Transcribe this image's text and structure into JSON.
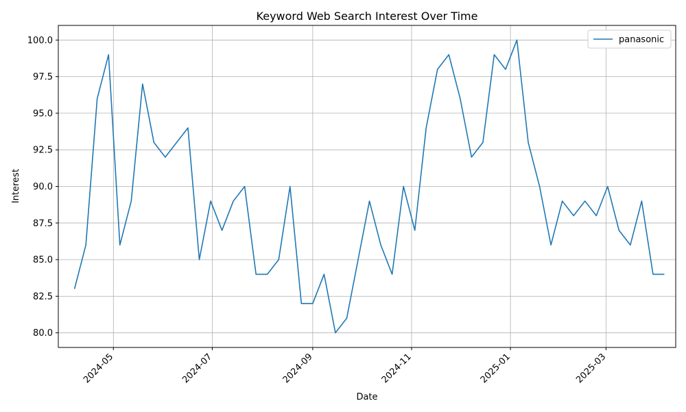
{
  "chart_data": {
    "type": "line",
    "title": "Keyword Web Search Interest Over Time",
    "xlabel": "Date",
    "ylabel": "Interest",
    "x_ticks": [
      "2024-05",
      "2024-07",
      "2024-09",
      "2024-11",
      "2025-01",
      "2025-03"
    ],
    "y_ticks": [
      "80.0",
      "82.5",
      "85.0",
      "87.5",
      "90.0",
      "92.5",
      "95.0",
      "97.5",
      "100.0"
    ],
    "ylim": [
      79,
      101
    ],
    "xlim": [
      "2024-03-28",
      "2025-04-13"
    ],
    "grid": true,
    "legend_position": "top-right",
    "color": "#1f77b4",
    "series": [
      {
        "name": "panasonic",
        "x": [
          "2024-04-07",
          "2024-04-14",
          "2024-04-21",
          "2024-04-28",
          "2024-05-05",
          "2024-05-12",
          "2024-05-19",
          "2024-05-26",
          "2024-06-02",
          "2024-06-09",
          "2024-06-16",
          "2024-06-23",
          "2024-06-30",
          "2024-07-07",
          "2024-07-14",
          "2024-07-21",
          "2024-07-28",
          "2024-08-04",
          "2024-08-11",
          "2024-08-18",
          "2024-08-25",
          "2024-09-01",
          "2024-09-08",
          "2024-09-15",
          "2024-09-22",
          "2024-09-29",
          "2024-10-06",
          "2024-10-13",
          "2024-10-20",
          "2024-10-27",
          "2024-11-03",
          "2024-11-10",
          "2024-11-17",
          "2024-11-24",
          "2024-12-01",
          "2024-12-08",
          "2024-12-15",
          "2024-12-22",
          "2024-12-29",
          "2025-01-05",
          "2025-01-12",
          "2025-01-19",
          "2025-01-26",
          "2025-02-02",
          "2025-02-09",
          "2025-02-16",
          "2025-02-23",
          "2025-03-02",
          "2025-03-09",
          "2025-03-16",
          "2025-03-23",
          "2025-03-30",
          "2025-04-06"
        ],
        "values": [
          83,
          86,
          96,
          99,
          86,
          89,
          97,
          93,
          92,
          93,
          94,
          85,
          89,
          87,
          89,
          90,
          84,
          84,
          85,
          90,
          82,
          82,
          84,
          80,
          81,
          85,
          89,
          86,
          84,
          90,
          87,
          94,
          98,
          99,
          96,
          92,
          93,
          99,
          98,
          100,
          93,
          90,
          86,
          89,
          88,
          89,
          88,
          90,
          87,
          86,
          89,
          84,
          84
        ]
      }
    ]
  }
}
